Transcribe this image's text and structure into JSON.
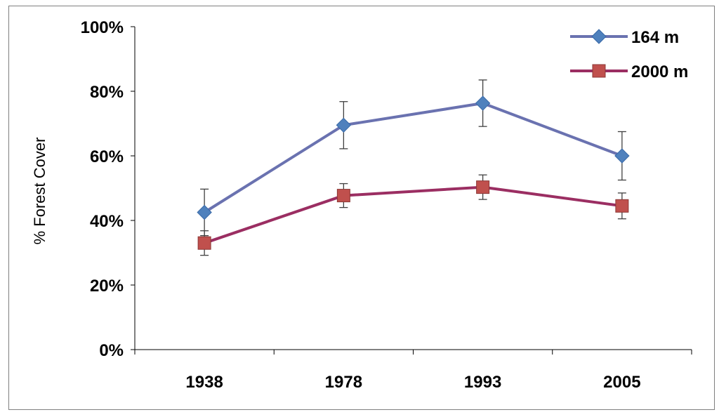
{
  "chart_data": {
    "type": "line",
    "title": "",
    "xlabel": "",
    "ylabel": "% Forest Cover",
    "categories": [
      "1938",
      "1978",
      "1993",
      "2005"
    ],
    "ylim": [
      0,
      100
    ],
    "y_ticks": [
      "0%",
      "20%",
      "40%",
      "60%",
      "80%",
      "100%"
    ],
    "y_tick_values": [
      0,
      20,
      40,
      60,
      80,
      100
    ],
    "grid": false,
    "legend_position": "top-right",
    "series": [
      {
        "name": "164 m",
        "color": "#6A72B0",
        "marker_color": "#4F81BD",
        "marker": "diamond",
        "values": [
          42.5,
          69.5,
          76.3,
          60.0
        ],
        "error": [
          7.2,
          7.3,
          7.2,
          7.5
        ]
      },
      {
        "name": "2000 m",
        "color": "#9B2E62",
        "marker_color": "#C0504D",
        "marker": "square",
        "values": [
          33.0,
          47.7,
          50.3,
          44.5
        ],
        "error": [
          3.8,
          3.7,
          3.8,
          4.0
        ]
      }
    ]
  }
}
